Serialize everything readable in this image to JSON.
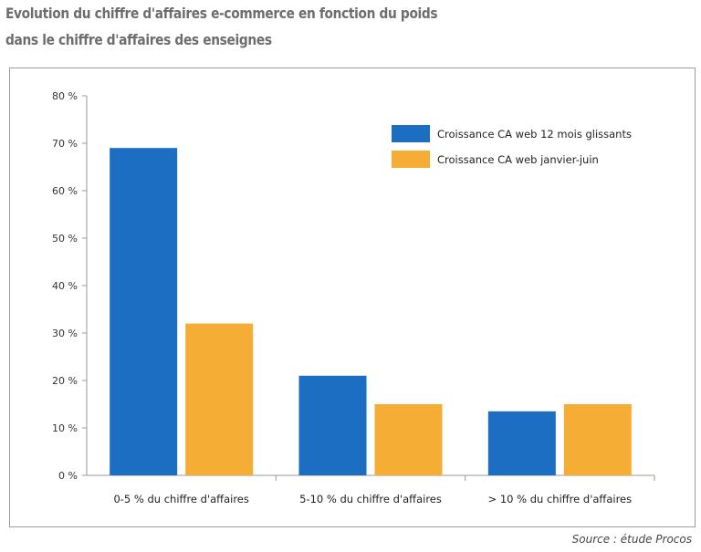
{
  "header": {
    "title_line1": "Evolution du chiffre d'affaires e-commerce en fonction du poids",
    "title_line2": "dans le chiffre d'affaires des enseignes"
  },
  "source": "Source : étude Procos",
  "chart_data": {
    "type": "bar",
    "title": "Evolution du chiffre d'affaires e-commerce en fonction du poids dans le chiffre d'affaires des enseignes",
    "categories": [
      "0-5 % du chiffre d'affaires",
      "5-10 % du chiffre d'affaires",
      "> 10 % du chiffre d'affaires"
    ],
    "series": [
      {
        "name": "Croissance CA web 12 mois glissants",
        "values": [
          69,
          21,
          13.5
        ],
        "color": "#1b6ec2"
      },
      {
        "name": "Croissance CA web  janvier-juin",
        "values": [
          32,
          15,
          15
        ],
        "color": "#f6ad36"
      }
    ],
    "y_ticks": [
      "0 %",
      "10 %",
      "20 %",
      "30 %",
      "40 %",
      "50 %",
      "60 %",
      "70 %",
      "80 %"
    ],
    "ylim": [
      0,
      80
    ],
    "xlabel": "",
    "ylabel": "",
    "grid": false,
    "legend_position": "top-right"
  }
}
